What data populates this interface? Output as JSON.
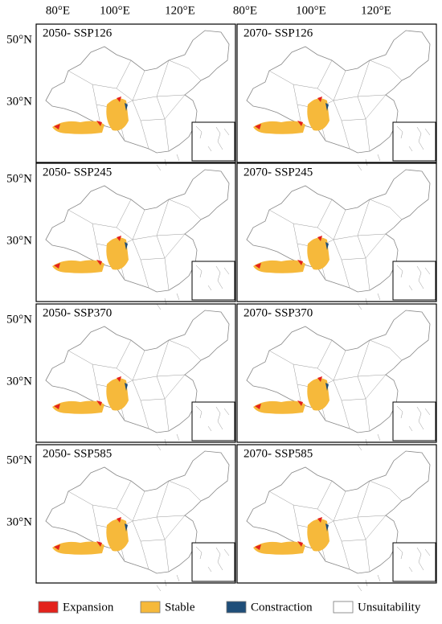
{
  "lon_labels": [
    "80°E",
    "100°E",
    "120°E"
  ],
  "rows": [
    {
      "lat_labels": [
        "50°N",
        "30°N"
      ],
      "panels": [
        "2050- SSP126",
        "2070- SSP126"
      ]
    },
    {
      "lat_labels": [
        "50°N",
        "30°N"
      ],
      "panels": [
        "2050- SSP245",
        "2070- SSP245"
      ]
    },
    {
      "lat_labels": [
        "50°N",
        "30°N"
      ],
      "panels": [
        "2050- SSP370",
        "2070- SSP370"
      ]
    },
    {
      "lat_labels": [
        "50°N",
        "30°N"
      ],
      "panels": [
        "2050- SSP585",
        "2070- SSP585"
      ]
    }
  ],
  "legend": [
    {
      "label": "Expansion",
      "color": "#e3221c"
    },
    {
      "label": "Stable",
      "color": "#f6b93b"
    },
    {
      "label": "Constraction",
      "color": "#1f4e79"
    },
    {
      "label": "Unsuitability",
      "color": "#ffffff"
    }
  ]
}
